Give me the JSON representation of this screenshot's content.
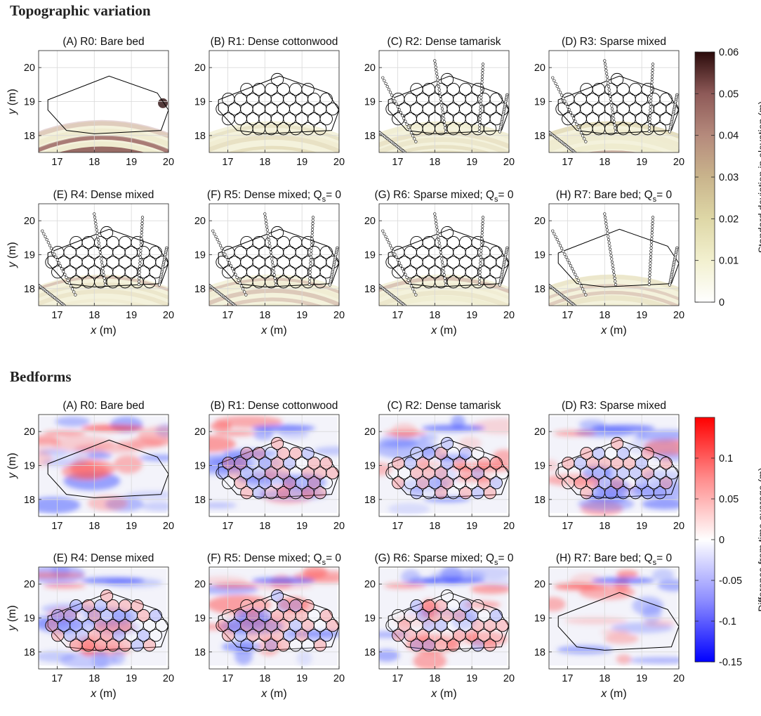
{
  "sections": [
    {
      "id": "topo",
      "title": "Topographic variation",
      "map_type": "std",
      "colorbar": {
        "label": "Standard deviation in elevation (m)",
        "ticks": [
          "0",
          "0.01",
          "0.02",
          "0.03",
          "0.04",
          "0.05",
          "0.06"
        ],
        "min": 0,
        "max": 0.06,
        "colors": [
          "#ffffff",
          "#f2f0cf",
          "#ded7a6",
          "#c9b48c",
          "#b58a7c",
          "#8e5a58",
          "#2b0b0b"
        ]
      },
      "panels": [
        {
          "label": "(A) R0: Bare bed",
          "sub": "",
          "veg": "none",
          "transects": false
        },
        {
          "label": "(B) R1: Dense cottonwood",
          "sub": "",
          "veg": "dense",
          "transects": false
        },
        {
          "label": "(C) R2: Dense tamarisk",
          "sub": "",
          "veg": "dense",
          "transects": true
        },
        {
          "label": "(D) R3: Sparse mixed",
          "sub": "",
          "veg": "sparse",
          "transects": true
        },
        {
          "label": "(E) R4: Dense mixed",
          "sub": "",
          "veg": "dense",
          "transects": true
        },
        {
          "label": "(F) R5: Dense mixed; Q",
          "sub": "s",
          "tail": "= 0",
          "veg": "dense",
          "transects": true
        },
        {
          "label": "(G) R6: Sparse mixed; Q",
          "sub": "s",
          "tail": "= 0",
          "veg": "sparse",
          "transects": true
        },
        {
          "label": "(H) R7: Bare bed; Q",
          "sub": "s",
          "tail": "= 0",
          "veg": "none",
          "transects": true
        }
      ]
    },
    {
      "id": "bed",
      "title": "Bedforms",
      "map_type": "diff",
      "colorbar": {
        "label": "Difference from time average (m)",
        "ticks": [
          "-0.15",
          "-0.1",
          "-0.05",
          "0",
          "0.05",
          "0.1"
        ],
        "min": -0.15,
        "max": 0.15,
        "colors": [
          "#0000ff",
          "#8c8cff",
          "#ffffff",
          "#ff8c8c",
          "#ff0000"
        ]
      },
      "panels": [
        {
          "label": "(A) R0: Bare bed",
          "sub": "",
          "veg": "none",
          "transects": false
        },
        {
          "label": "(B) R1: Dense cottonwood",
          "sub": "",
          "veg": "dense",
          "transects": false
        },
        {
          "label": "(C) R2: Dense tamarisk",
          "sub": "",
          "veg": "dense",
          "transects": false
        },
        {
          "label": "(D) R3: Sparse mixed",
          "sub": "",
          "veg": "sparse",
          "transects": false
        },
        {
          "label": "(E) R4: Dense mixed",
          "sub": "",
          "veg": "dense",
          "transects": false
        },
        {
          "label": "(F) R5: Dense mixed; Q",
          "sub": "s",
          "tail": "= 0",
          "veg": "dense",
          "transects": false
        },
        {
          "label": "(G) R6: Sparse mixed; Q",
          "sub": "s",
          "tail": "= 0",
          "veg": "sparse",
          "transects": false
        },
        {
          "label": "(H) R7: Bare bed; Q",
          "sub": "s",
          "tail": "= 0",
          "veg": "none",
          "transects": false
        }
      ]
    }
  ],
  "axes": {
    "x_ticks": [
      "17",
      "18",
      "19",
      "20"
    ],
    "y_ticks": [
      "20",
      "19",
      "18"
    ],
    "xlabel_var": "x",
    "ylabel_var": "y",
    "unit": "(m)",
    "xlim": [
      16.5,
      20
    ],
    "ylim": [
      17.5,
      20.5
    ]
  },
  "chart_data": {
    "type": "heatmap",
    "title": "Topographic variation and Bedforms",
    "xlabel": "x (m)",
    "ylabel": "y (m)",
    "xlim": [
      16.5,
      20
    ],
    "ylim": [
      17.5,
      20.5
    ],
    "x_ticks": [
      17,
      18,
      19,
      20
    ],
    "y_ticks": [
      18,
      19,
      20
    ],
    "panels": [
      "(A) R0: Bare bed",
      "(B) R1: Dense cottonwood",
      "(C) R2: Dense tamarisk",
      "(D) R3: Sparse mixed",
      "(E) R4: Dense mixed",
      "(F) R5: Dense mixed; Qs = 0",
      "(G) R6: Sparse mixed; Qs = 0",
      "(H) R7: Bare bed; Qs = 0"
    ],
    "topographic_variation": {
      "colorbar_label": "Standard deviation in elevation (m)",
      "range": [
        0,
        0.06
      ]
    },
    "bedforms": {
      "colorbar_label": "Difference from time average (m)",
      "range": [
        -0.15,
        0.15
      ]
    },
    "vegetation_patch_outline": [
      [
        16.75,
        18.75
      ],
      [
        17.25,
        18.15
      ],
      [
        18.0,
        18.05
      ],
      [
        19.8,
        18.15
      ],
      [
        20.0,
        18.75
      ],
      [
        19.7,
        19.25
      ],
      [
        18.4,
        19.75
      ],
      [
        16.75,
        19.05
      ]
    ]
  }
}
